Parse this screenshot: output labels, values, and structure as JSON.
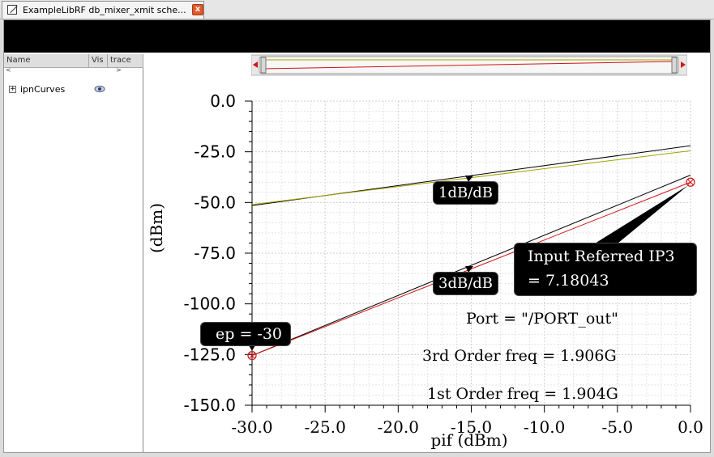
{
  "tab": {
    "title": "ExampleLibRF db_mixer_xmit sche...",
    "close_glyph": "x"
  },
  "panel": {
    "columns": [
      "Name",
      "Vis",
      "trace"
    ],
    "scroll_left": "<",
    "scroll_right": ">",
    "tree": [
      {
        "expander": "+",
        "label": "ipnCurves",
        "visible_icon": "eye-icon"
      }
    ]
  },
  "chart": {
    "y_ticks": [
      "0.0",
      "-25.0",
      "-50.0",
      "-75.0",
      "-100.0",
      "-125.0",
      "-150.0"
    ],
    "x_ticks": [
      "-30.0",
      "-25.0",
      "-20.0",
      "-15.0",
      "-10.0",
      "-5.0",
      "0.0"
    ],
    "ylabel": "(dBm)",
    "xlabel": "pif (dBm)",
    "label_1db": "1dB/dB",
    "label_3db": "3dB/dB",
    "ip3_line1": "Input Referred IP3",
    "ip3_line2": "= 7.18043",
    "ep_label": "ep = -30",
    "port_text": "Port = \"/PORT_out\"",
    "third_order_text": "3rd Order freq = 1.906G",
    "first_order_text": "1st Order freq = 1.904G"
  },
  "chart_data": {
    "type": "line",
    "xlabel": "pif (dBm)",
    "ylabel": "(dBm)",
    "xlim": [
      -30,
      0
    ],
    "ylim": [
      -150,
      0
    ],
    "grid": true,
    "series": [
      {
        "color": "#000000",
        "x": [
          -30,
          0
        ],
        "y": [
          -51.5,
          -22
        ]
      },
      {
        "color": "#a3a300",
        "x": [
          -30,
          0
        ],
        "y": [
          -51,
          -24.5
        ]
      },
      {
        "color": "#000000",
        "x": [
          -30,
          0
        ],
        "y": [
          -125.5,
          -36.5
        ]
      },
      {
        "color": "#d21414",
        "x": [
          -30,
          0
        ],
        "y": [
          -125.5,
          -40
        ]
      }
    ],
    "markers": [
      {
        "x": -30,
        "y": -125.5,
        "color": "#d21414"
      },
      {
        "x": 0,
        "y": -40,
        "color": "#d21414"
      }
    ]
  }
}
